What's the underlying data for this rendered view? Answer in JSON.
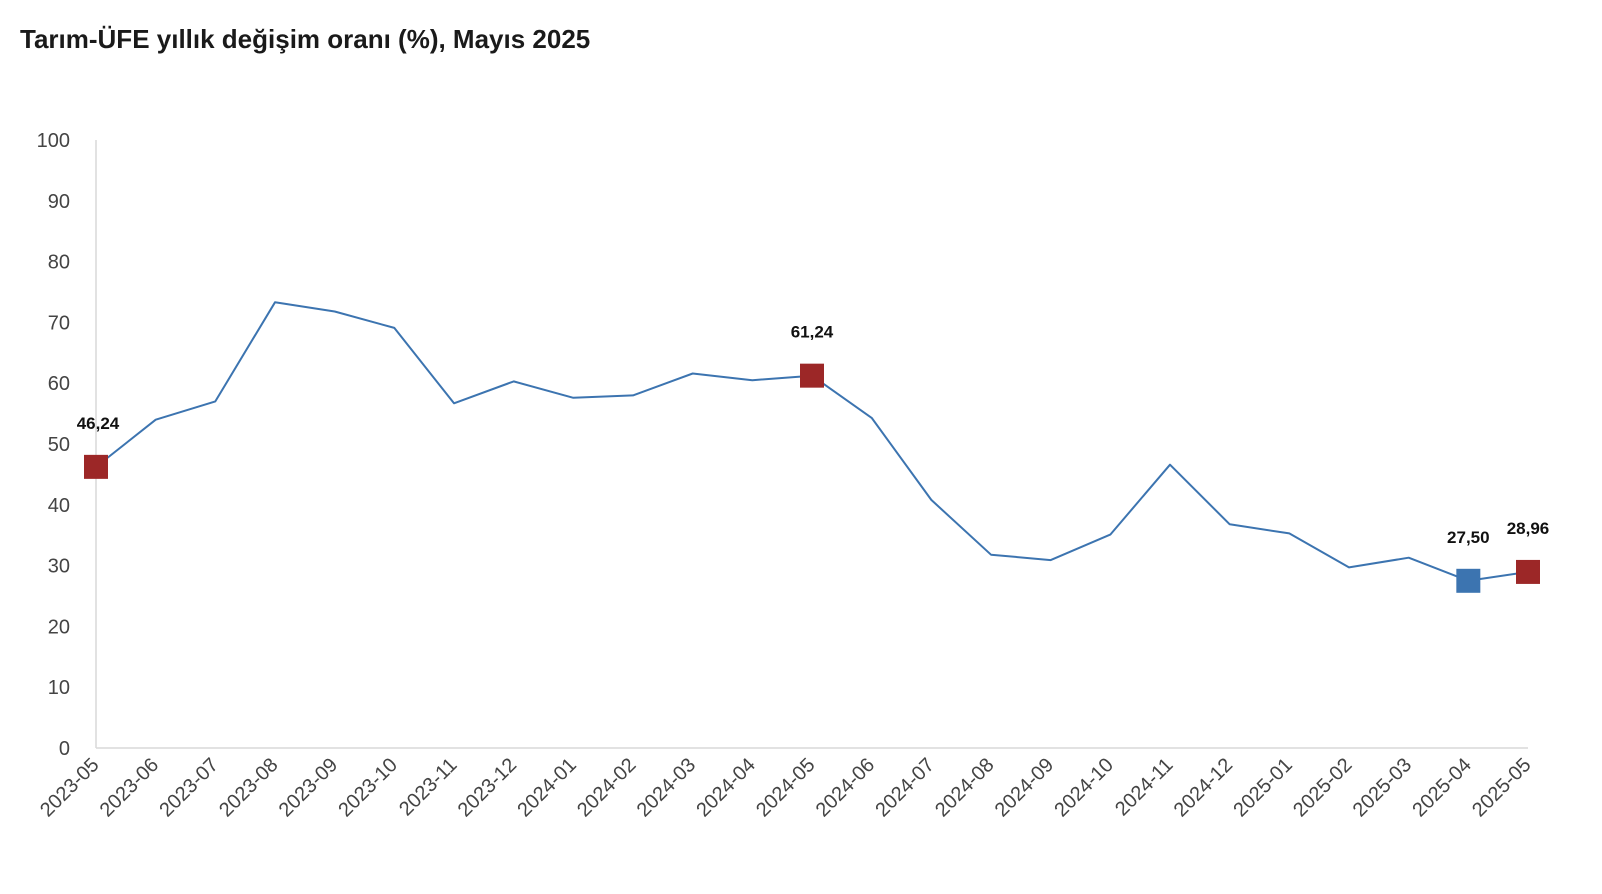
{
  "chart_data": {
    "type": "line",
    "title": "Tarım-ÜFE yıllık değişim oranı (%), Mayıs 2025",
    "xlabel": "",
    "ylabel": "",
    "ylim": [
      0,
      100
    ],
    "yticks": [
      0,
      10,
      20,
      30,
      40,
      50,
      60,
      70,
      80,
      90,
      100
    ],
    "grid": false,
    "legend": "none",
    "categories": [
      "2023-05",
      "2023-06",
      "2023-07",
      "2023-08",
      "2023-09",
      "2023-10",
      "2023-11",
      "2023-12",
      "2024-01",
      "2024-02",
      "2024-03",
      "2024-04",
      "2024-05",
      "2024-06",
      "2024-07",
      "2024-08",
      "2024-09",
      "2024-10",
      "2024-11",
      "2024-12",
      "2025-01",
      "2025-02",
      "2025-03",
      "2025-04",
      "2025-05"
    ],
    "series": [
      {
        "color": "#3c74b0",
        "values": [
          46.24,
          54.0,
          57.0,
          73.3,
          71.8,
          69.1,
          56.7,
          60.3,
          57.6,
          58.0,
          61.6,
          60.5,
          61.24,
          54.3,
          40.8,
          31.8,
          30.9,
          35.1,
          46.6,
          36.8,
          35.3,
          29.7,
          31.3,
          27.5,
          28.96
        ]
      }
    ],
    "highlighted_points": [
      {
        "category": "2023-05",
        "value": 46.24,
        "label": "46,24",
        "color": "#9c2727"
      },
      {
        "category": "2024-05",
        "value": 61.24,
        "label": "61,24",
        "color": "#9c2727"
      },
      {
        "category": "2025-04",
        "value": 27.5,
        "label": "27,50",
        "color": "#3c74b0"
      },
      {
        "category": "2025-05",
        "value": 28.96,
        "label": "28,96",
        "color": "#9c2727"
      }
    ],
    "axis_color": "#d9d9d9"
  }
}
